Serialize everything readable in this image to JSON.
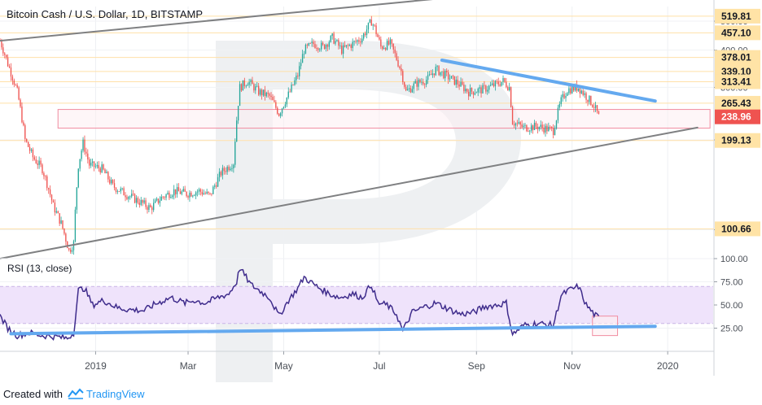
{
  "chart_data": [
    {
      "type": "candlestick",
      "title": "Bitcoin Cash / U.S. Dollar, 1D, BITSTAMP",
      "y_scale": "log",
      "ylim": [
        80,
        560
      ],
      "y_ticks": [
        100,
        200,
        300,
        400,
        500
      ],
      "y_tick_labels": [
        "100.00",
        "200.00",
        "300.00",
        "400.00",
        "500.00"
      ],
      "x_ticks": [
        "2019",
        "Mar",
        "May",
        "Jul",
        "Sep",
        "Nov",
        "2020"
      ],
      "x_tick_dates": [
        "2019-01-01",
        "2019-03-01",
        "2019-05-01",
        "2019-07-01",
        "2019-09-01",
        "2019-11-01",
        "2020-01-01"
      ],
      "x_range": [
        "2018-11-01",
        "2020-01-30"
      ],
      "grid": true,
      "level_labels": [
        {
          "value": 519.81,
          "label": "519.81"
        },
        {
          "value": 457.1,
          "label": "457.10"
        },
        {
          "value": 378.01,
          "label": "378.01"
        },
        {
          "value": 339.1,
          "label": "339.10"
        },
        {
          "value": 313.41,
          "label": "313.41"
        },
        {
          "value": 265.43,
          "label": "265.43"
        },
        {
          "value": 238.96,
          "label": "238.96",
          "current": true
        },
        {
          "value": 199.13,
          "label": "199.13"
        },
        {
          "value": 100.66,
          "label": "100.66"
        }
      ],
      "price_path": [
        [
          "2018-11-01",
          430
        ],
        [
          "2018-11-06",
          360
        ],
        [
          "2018-11-12",
          290
        ],
        [
          "2018-11-17",
          200
        ],
        [
          "2018-11-22",
          175
        ],
        [
          "2018-11-28",
          160
        ],
        [
          "2018-12-05",
          120
        ],
        [
          "2018-12-10",
          105
        ],
        [
          "2018-12-15",
          85
        ],
        [
          "2018-12-18",
          90
        ],
        [
          "2018-12-21",
          165
        ],
        [
          "2018-12-24",
          195
        ],
        [
          "2018-12-28",
          165
        ],
        [
          "2019-01-05",
          160
        ],
        [
          "2019-01-12",
          140
        ],
        [
          "2019-01-20",
          132
        ],
        [
          "2019-01-28",
          125
        ],
        [
          "2019-02-05",
          118
        ],
        [
          "2019-02-12",
          128
        ],
        [
          "2019-02-20",
          135
        ],
        [
          "2019-02-28",
          132
        ],
        [
          "2019-03-08",
          135
        ],
        [
          "2019-03-15",
          130
        ],
        [
          "2019-03-22",
          155
        ],
        [
          "2019-03-30",
          168
        ],
        [
          "2019-04-03",
          300
        ],
        [
          "2019-04-08",
          315
        ],
        [
          "2019-04-15",
          290
        ],
        [
          "2019-04-22",
          280
        ],
        [
          "2019-04-28",
          245
        ],
        [
          "2019-05-05",
          290
        ],
        [
          "2019-05-10",
          330
        ],
        [
          "2019-05-14",
          400
        ],
        [
          "2019-05-20",
          420
        ],
        [
          "2019-05-26",
          410
        ],
        [
          "2019-06-01",
          440
        ],
        [
          "2019-06-07",
          400
        ],
        [
          "2019-06-14",
          420
        ],
        [
          "2019-06-20",
          440
        ],
        [
          "2019-06-26",
          500
        ],
        [
          "2019-06-28",
          475
        ],
        [
          "2019-07-02",
          410
        ],
        [
          "2019-07-08",
          420
        ],
        [
          "2019-07-15",
          340
        ],
        [
          "2019-07-18",
          290
        ],
        [
          "2019-07-25",
          310
        ],
        [
          "2019-08-01",
          320
        ],
        [
          "2019-08-06",
          345
        ],
        [
          "2019-08-12",
          330
        ],
        [
          "2019-08-20",
          310
        ],
        [
          "2019-08-27",
          290
        ],
        [
          "2019-09-05",
          295
        ],
        [
          "2019-09-12",
          305
        ],
        [
          "2019-09-18",
          315
        ],
        [
          "2019-09-22",
          300
        ],
        [
          "2019-09-24",
          230
        ],
        [
          "2019-10-01",
          220
        ],
        [
          "2019-10-10",
          222
        ],
        [
          "2019-10-20",
          215
        ],
        [
          "2019-10-25",
          270
        ],
        [
          "2019-10-29",
          295
        ],
        [
          "2019-11-05",
          300
        ],
        [
          "2019-11-10",
          280
        ],
        [
          "2019-11-15",
          260
        ],
        [
          "2019-11-18",
          239
        ]
      ],
      "channel_upper": [
        [
          "2018-11-01",
          430
        ],
        [
          "2019-08-15",
          600
        ]
      ],
      "channel_lower": [
        [
          "2018-11-01",
          80
        ],
        [
          "2020-01-20",
          220
        ]
      ],
      "triangle_line": [
        [
          "2019-08-10",
          370
        ],
        [
          "2019-12-24",
          270
        ]
      ],
      "support_zone": {
        "from": 219,
        "to": 253,
        "x_start": "2018-12-08",
        "x_end": "2020-01-28"
      }
    },
    {
      "type": "line",
      "title": "RSI (13, close)",
      "ylim": [
        0,
        100
      ],
      "y_ticks": [
        25,
        50,
        75,
        100
      ],
      "y_tick_labels": [
        "25.00",
        "50.00",
        "75.00",
        "100.00"
      ],
      "band": [
        30,
        70
      ],
      "values": [
        [
          "2018-11-01",
          38
        ],
        [
          "2018-11-06",
          25
        ],
        [
          "2018-11-12",
          17
        ],
        [
          "2018-11-20",
          20
        ],
        [
          "2018-11-28",
          17
        ],
        [
          "2018-12-06",
          16
        ],
        [
          "2018-12-14",
          14
        ],
        [
          "2018-12-18",
          20
        ],
        [
          "2018-12-21",
          66
        ],
        [
          "2018-12-25",
          68
        ],
        [
          "2018-12-30",
          50
        ],
        [
          "2019-01-06",
          55
        ],
        [
          "2019-01-15",
          47
        ],
        [
          "2019-01-22",
          45
        ],
        [
          "2019-02-01",
          44
        ],
        [
          "2019-02-08",
          51
        ],
        [
          "2019-02-18",
          58
        ],
        [
          "2019-02-27",
          52
        ],
        [
          "2019-03-05",
          55
        ],
        [
          "2019-03-12",
          52
        ],
        [
          "2019-03-20",
          58
        ],
        [
          "2019-03-27",
          62
        ],
        [
          "2019-04-01",
          75
        ],
        [
          "2019-04-03",
          90
        ],
        [
          "2019-04-10",
          72
        ],
        [
          "2019-04-16",
          65
        ],
        [
          "2019-04-22",
          58
        ],
        [
          "2019-04-28",
          38
        ],
        [
          "2019-05-04",
          55
        ],
        [
          "2019-05-10",
          68
        ],
        [
          "2019-05-14",
          80
        ],
        [
          "2019-05-22",
          70
        ],
        [
          "2019-05-30",
          62
        ],
        [
          "2019-06-06",
          58
        ],
        [
          "2019-06-14",
          62
        ],
        [
          "2019-06-20",
          58
        ],
        [
          "2019-06-26",
          72
        ],
        [
          "2019-06-30",
          52
        ],
        [
          "2019-07-06",
          50
        ],
        [
          "2019-07-12",
          40
        ],
        [
          "2019-07-16",
          22
        ],
        [
          "2019-07-22",
          42
        ],
        [
          "2019-07-30",
          48
        ],
        [
          "2019-08-06",
          52
        ],
        [
          "2019-08-15",
          45
        ],
        [
          "2019-08-22",
          40
        ],
        [
          "2019-08-30",
          42
        ],
        [
          "2019-09-06",
          48
        ],
        [
          "2019-09-14",
          50
        ],
        [
          "2019-09-20",
          52
        ],
        [
          "2019-09-24",
          18
        ],
        [
          "2019-10-01",
          28
        ],
        [
          "2019-10-10",
          30
        ],
        [
          "2019-10-20",
          28
        ],
        [
          "2019-10-25",
          60
        ],
        [
          "2019-10-29",
          65
        ],
        [
          "2019-11-05",
          70
        ],
        [
          "2019-11-10",
          50
        ],
        [
          "2019-11-15",
          40
        ],
        [
          "2019-11-18",
          36
        ]
      ],
      "trend_line": [
        [
          "2018-11-08",
          19
        ],
        [
          "2019-12-24",
          27
        ]
      ],
      "highlight_zone": {
        "from": 17,
        "to": 38,
        "x_start": "2019-11-14",
        "x_end": "2019-11-30"
      }
    }
  ],
  "colors": {
    "up": "#26a69a",
    "down": "#ef5350",
    "channel": "#7f8082",
    "trend_blue": "#64a9ef",
    "level_line": "#ffe0a8",
    "label_bg": "#ffe3a6",
    "rsi_line": "#3f2c8c",
    "rsi_band": "#efe3fb",
    "zone_border": "#f18ca0",
    "zone_fill": "#fdeef1",
    "watermark": "#e8ebee",
    "tradingview": "#2196f3"
  },
  "footer": {
    "prefix": "Created with",
    "brand": "TradingView"
  }
}
